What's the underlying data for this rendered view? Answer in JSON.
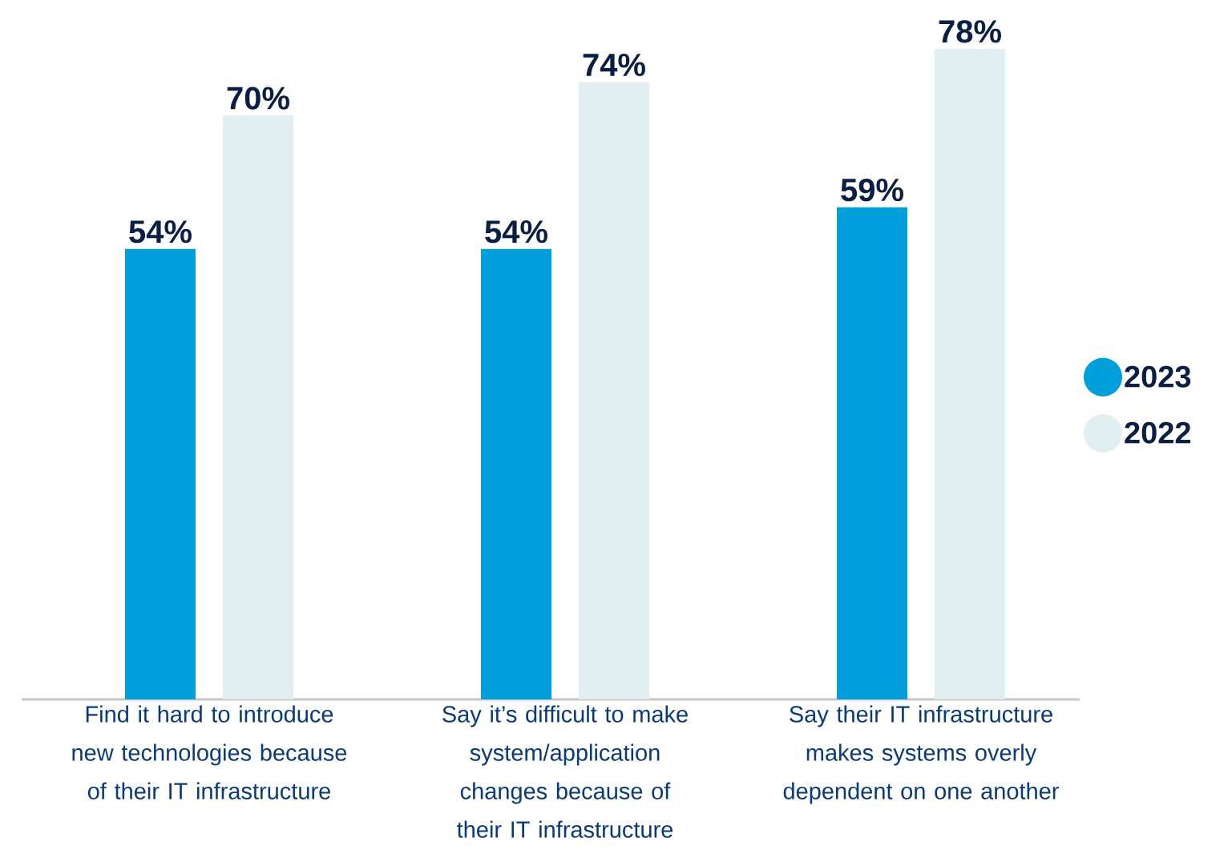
{
  "chart_data": {
    "type": "bar",
    "categories": [
      "Find it hard to introduce new technologies because of their IT infrastructure",
      "Say it’s difficult to make system/application changes because of their IT infrastructure",
      "Say their IT infrastructure makes systems overly dependent on one another"
    ],
    "series": [
      {
        "name": "2023",
        "color": "#009edb",
        "values": [
          54,
          54,
          59
        ],
        "value_labels": [
          "54%",
          "54%",
          "59%"
        ]
      },
      {
        "name": "2022",
        "color": "#e1eef2",
        "values": [
          70,
          74,
          78
        ],
        "value_labels": [
          "70%",
          "74%",
          "78%"
        ]
      }
    ],
    "legend": "right"
  }
}
